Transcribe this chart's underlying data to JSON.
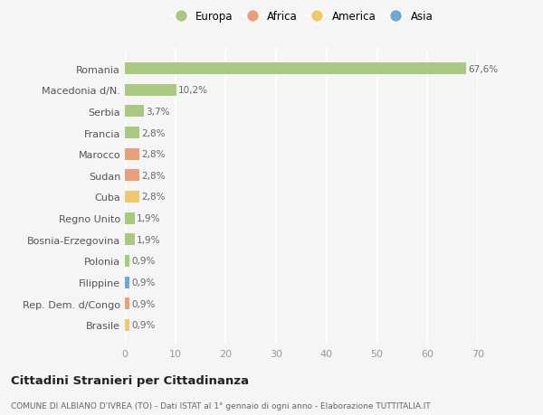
{
  "categories": [
    "Brasile",
    "Rep. Dem. d/Congo",
    "Filippine",
    "Polonia",
    "Bosnia-Erzegovina",
    "Regno Unito",
    "Cuba",
    "Sudan",
    "Marocco",
    "Francia",
    "Serbia",
    "Macedonia d/N.",
    "Romania"
  ],
  "values": [
    0.9,
    0.9,
    0.9,
    0.9,
    1.9,
    1.9,
    2.8,
    2.8,
    2.8,
    2.8,
    3.7,
    10.2,
    67.6
  ],
  "labels": [
    "0,9%",
    "0,9%",
    "0,9%",
    "0,9%",
    "1,9%",
    "1,9%",
    "2,8%",
    "2,8%",
    "2,8%",
    "2,8%",
    "3,7%",
    "10,2%",
    "67,6%"
  ],
  "continents": [
    "America",
    "Africa",
    "Asia",
    "Europa",
    "Europa",
    "Europa",
    "America",
    "Africa",
    "Africa",
    "Europa",
    "Europa",
    "Europa",
    "Europa"
  ],
  "continent_colors": {
    "Europa": "#a8c97f",
    "Africa": "#e8a07a",
    "America": "#f0c96e",
    "Asia": "#6fa8d0"
  },
  "legend_order": [
    "Europa",
    "Africa",
    "America",
    "Asia"
  ],
  "title": "Cittadini Stranieri per Cittadinanza",
  "subtitle": "COMUNE DI ALBIANO D'IVREA (TO) - Dati ISTAT al 1° gennaio di ogni anno - Elaborazione TUTTITALIA.IT",
  "xlim": [
    0,
    70
  ],
  "xticks": [
    0,
    10,
    20,
    30,
    40,
    50,
    60,
    70
  ],
  "background_color": "#f5f5f5",
  "grid_color": "#ffffff",
  "bar_height": 0.55
}
